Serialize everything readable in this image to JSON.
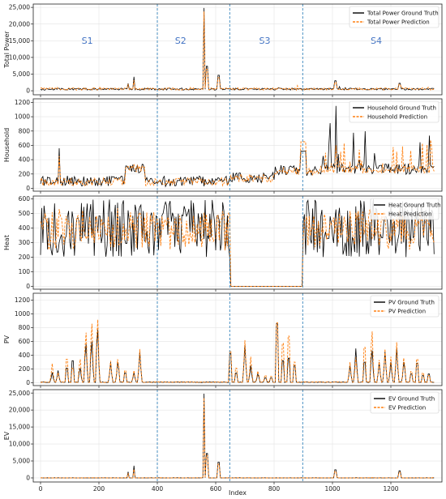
{
  "chart_data": {
    "type": "line",
    "xlabel": "Index",
    "xlim": [
      -25,
      1375
    ],
    "xticks": [
      0,
      200,
      400,
      600,
      800,
      1000,
      1200,
      1400
    ],
    "grid": true,
    "segment_boundaries": [
      400,
      648,
      898
    ],
    "segment_labels": [
      {
        "text": "S1",
        "x": 160
      },
      {
        "text": "S2",
        "x": 480
      },
      {
        "text": "S3",
        "x": 768
      },
      {
        "text": "S4",
        "x": 1150
      }
    ],
    "colors": {
      "ground_truth": "#000000",
      "prediction": "#ff7f0e",
      "boundary": "#1f77b4"
    },
    "panels": [
      {
        "ylabel": "Total Power",
        "ylim": [
          -1200,
          26000
        ],
        "yticks": [
          0,
          5000,
          10000,
          15000,
          20000,
          25000
        ],
        "ytick_labels": [
          "0",
          "5,000",
          "10,000",
          "15,000",
          "20,000",
          "25,000"
        ],
        "legend": {
          "position": "top-right",
          "entries": [
            "Total Power Ground Truth",
            "Total Power Prediction"
          ]
        },
        "series": [
          {
            "name": "Total Power Ground Truth",
            "kind": "baseline_spikes",
            "base": 500,
            "noise": 300,
            "spikes": [
              [
                300,
                2200
              ],
              [
                320,
                4200
              ],
              [
                560,
                24800
              ],
              [
                570,
                9800
              ],
              [
                610,
                6200
              ],
              [
                1010,
                4000
              ],
              [
                1230,
                3000
              ]
            ]
          },
          {
            "name": "Total Power Prediction",
            "kind": "baseline_spikes",
            "base": 550,
            "noise": 350,
            "spikes": [
              [
                300,
                1800
              ],
              [
                320,
                3200
              ],
              [
                560,
                23800
              ],
              [
                570,
                8600
              ],
              [
                610,
                5200
              ],
              [
                1010,
                3400
              ],
              [
                1230,
                2600
              ]
            ]
          }
        ]
      },
      {
        "ylabel": "Household",
        "ylim": [
          -40,
          1250
        ],
        "yticks": [
          0,
          200,
          400,
          600,
          800,
          1000,
          1200
        ],
        "ytick_labels": [
          "0",
          "200",
          "400",
          "600",
          "800",
          "1000",
          "1200"
        ],
        "legend": {
          "position": "top-right",
          "entries": [
            "Household Ground Truth",
            "Household Prediction"
          ]
        },
        "series": [
          {
            "name": "Household Ground Truth",
            "kind": "household"
          },
          {
            "name": "Household Prediction",
            "kind": "household_pred"
          }
        ]
      },
      {
        "ylabel": "Heat",
        "ylim": [
          -20,
          620
        ],
        "yticks": [
          0,
          100,
          200,
          300,
          400,
          500,
          600
        ],
        "ytick_labels": [
          "0",
          "100",
          "200",
          "300",
          "400",
          "500",
          "600"
        ],
        "legend": {
          "position": "top-right",
          "entries": [
            "Heat Ground Truth",
            "Heat Prediction"
          ]
        },
        "series": [
          {
            "name": "Heat Ground Truth",
            "kind": "heat"
          },
          {
            "name": "Heat Prediction",
            "kind": "heat_pred"
          }
        ]
      },
      {
        "ylabel": "PV",
        "ylim": [
          -40,
          1300
        ],
        "yticks": [
          0,
          200,
          400,
          600,
          800,
          1000,
          1200
        ],
        "ytick_labels": [
          "0",
          "200",
          "400",
          "600",
          "800",
          "1000",
          "1200"
        ],
        "legend": {
          "position": "top-right",
          "entries": [
            "PV Ground Truth",
            "PV Prediction"
          ]
        },
        "series": [
          {
            "name": "PV Ground Truth",
            "kind": "peaks",
            "peaks": [
              [
                40,
                150
              ],
              [
                60,
                180
              ],
              [
                90,
                300
              ],
              [
                110,
                450
              ],
              [
                135,
                250
              ],
              [
                155,
                650
              ],
              [
                175,
                700
              ],
              [
                195,
                900
              ],
              [
                240,
                300
              ],
              [
                265,
                350
              ],
              [
                290,
                200
              ],
              [
                320,
                150
              ],
              [
                340,
                450
              ],
              [
                650,
                600
              ],
              [
                670,
                200
              ],
              [
                700,
                550
              ],
              [
                720,
                250
              ],
              [
                745,
                150
              ],
              [
                770,
                100
              ],
              [
                790,
                100
              ],
              [
                810,
                1200
              ],
              [
                830,
                450
              ],
              [
                850,
                500
              ],
              [
                870,
                350
              ],
              [
                1060,
                250
              ],
              [
                1080,
                500
              ],
              [
                1110,
                420
              ],
              [
                1135,
                550
              ],
              [
                1160,
                300
              ],
              [
                1180,
                450
              ],
              [
                1200,
                300
              ],
              [
                1220,
                500
              ],
              [
                1245,
                350
              ],
              [
                1270,
                180
              ],
              [
                1290,
                400
              ],
              [
                1310,
                150
              ],
              [
                1330,
                180
              ]
            ]
          },
          {
            "name": "PV Prediction",
            "kind": "peaks",
            "peaks": [
              [
                40,
                280
              ],
              [
                60,
                150
              ],
              [
                90,
                480
              ],
              [
                110,
                300
              ],
              [
                135,
                400
              ],
              [
                155,
                850
              ],
              [
                175,
                1000
              ],
              [
                195,
                1070
              ],
              [
                240,
                320
              ],
              [
                265,
                400
              ],
              [
                290,
                250
              ],
              [
                320,
                180
              ],
              [
                340,
                490
              ],
              [
                650,
                650
              ],
              [
                670,
                300
              ],
              [
                700,
                620
              ],
              [
                720,
                380
              ],
              [
                745,
                200
              ],
              [
                770,
                150
              ],
              [
                790,
                130
              ],
              [
                810,
                1220
              ],
              [
                830,
                800
              ],
              [
                850,
                950
              ],
              [
                870,
                420
              ],
              [
                1060,
                300
              ],
              [
                1080,
                370
              ],
              [
                1110,
                720
              ],
              [
                1135,
                870
              ],
              [
                1160,
                330
              ],
              [
                1180,
                490
              ],
              [
                1200,
                380
              ],
              [
                1220,
                590
              ],
              [
                1245,
                420
              ],
              [
                1270,
                230
              ],
              [
                1290,
                480
              ],
              [
                1310,
                200
              ],
              [
                1330,
                150
              ]
            ]
          }
        ]
      },
      {
        "ylabel": "EV",
        "ylim": [
          -1200,
          26000
        ],
        "yticks": [
          0,
          5000,
          10000,
          15000,
          20000,
          25000
        ],
        "ytick_labels": [
          "0",
          "5,000",
          "10,000",
          "15,000",
          "20,000",
          "25,000"
        ],
        "legend": {
          "position": "top-right",
          "entries": [
            "EV Ground Truth",
            "EV Prediction"
          ]
        },
        "series": [
          {
            "name": "EV Ground Truth",
            "kind": "baseline_spikes",
            "base": 0,
            "noise": 40,
            "spikes": [
              [
                300,
                1800
              ],
              [
                320,
                3600
              ],
              [
                560,
                24800
              ],
              [
                570,
                9600
              ],
              [
                610,
                6200
              ],
              [
                1010,
                3200
              ],
              [
                1230,
                2800
              ]
            ]
          },
          {
            "name": "EV Prediction",
            "kind": "baseline_spikes",
            "base": 0,
            "noise": 60,
            "spikes": [
              [
                300,
                1400
              ],
              [
                320,
                2600
              ],
              [
                560,
                23600
              ],
              [
                570,
                8800
              ],
              [
                610,
                5400
              ],
              [
                1010,
                2600
              ],
              [
                1230,
                2200
              ]
            ]
          }
        ]
      }
    ]
  }
}
